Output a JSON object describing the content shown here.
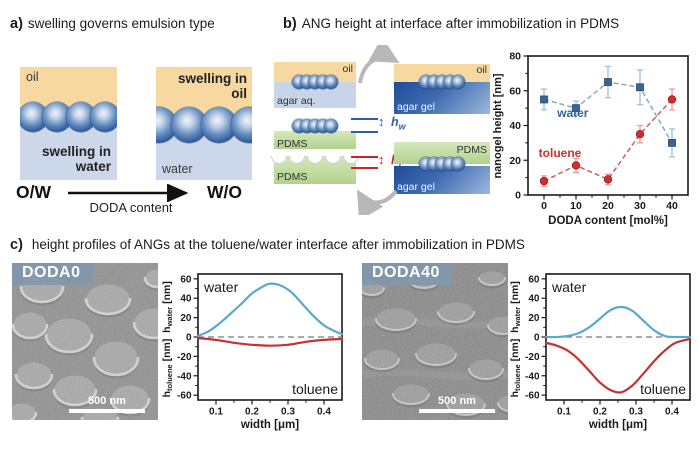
{
  "colors": {
    "oil": "#f6d8a0",
    "water_phase": "#ccd7e9",
    "agar_aq": "#c8d4e8",
    "pdms_green": "#b9d697",
    "agar_gel": "#2a56a0",
    "water_series": "#3a6496",
    "toluene_series": "#cf2e2e",
    "sem_label_bg": "#8296ad"
  },
  "panel_a": {
    "label": "a)",
    "title": "swelling governs emulsion type",
    "left_box": {
      "oil": "oil",
      "caption": "swelling in water"
    },
    "right_box": {
      "caption": "swelling in oil",
      "water": "water"
    },
    "axis": {
      "left": "O/W",
      "right": "W/O",
      "caption": "DODA content"
    }
  },
  "panel_b": {
    "label": "b)",
    "title": "ANG height at interface after immobilization in PDMS",
    "schematic": {
      "top_left": {
        "oil": "oil",
        "phase": "agar aq."
      },
      "top_right": {
        "oil": "oil",
        "phase": "agar gel"
      },
      "bottom_left": {
        "pdms_upper": "PDMS",
        "pdms_lower": "PDMS"
      },
      "bottom_right": {
        "pdms": "PDMS",
        "phase": "agar gel"
      },
      "hw": {
        "base": "h",
        "sub": "w"
      },
      "ht": {
        "base": "h",
        "sub": "t"
      }
    }
  },
  "panel_c": {
    "label": "c)",
    "title": "height profiles of ANGs at the toluene/water interface after immobilization in PDMS",
    "sem_left": {
      "label": "DODA0",
      "scale_bar": "500 nm"
    },
    "sem_right": {
      "label": "DODA40",
      "scale_bar": "500 nm"
    }
  },
  "chart_data": [
    {
      "id": "nanogel-height-vs-doda",
      "type": "scatter",
      "xlabel": "DODA content [mol%]",
      "ylabel": "nanogel height [nm]",
      "xlim": [
        -5,
        45
      ],
      "ylim": [
        0,
        80
      ],
      "xticks": [
        0,
        10,
        20,
        30,
        40
      ],
      "yticks": [
        0,
        20,
        40,
        60,
        80
      ],
      "categories": [
        0,
        10,
        20,
        30,
        40
      ],
      "series": [
        {
          "name": "water",
          "marker": "square",
          "color": "#3a6496",
          "line_color": "#8aa8bf",
          "err_color": "#9fc0dc",
          "values": [
            55,
            50,
            65,
            62,
            30
          ],
          "errors": [
            6,
            4,
            9,
            10,
            8
          ],
          "label_pos": [
            9,
            45
          ]
        },
        {
          "name": "toluene",
          "marker": "circle",
          "color": "#cf2e2e",
          "line_color": "#d25c5c",
          "err_color": "#e89c9c",
          "values": [
            8,
            17,
            9,
            35,
            55
          ],
          "errors": [
            3,
            4,
            3,
            5,
            6
          ],
          "label_pos": [
            5,
            22
          ]
        }
      ]
    },
    {
      "id": "profile-doda0",
      "type": "line",
      "xlabel": "width [μm]",
      "ylabel_top": {
        "base": "h",
        "sub": "water",
        "unit": " [nm]"
      },
      "ylabel_bottom": {
        "base": "h",
        "sub": "toluene",
        "unit": " [nm]"
      },
      "xlim": [
        0.05,
        0.45
      ],
      "ylim": [
        -65,
        65
      ],
      "xticks": [
        0.1,
        0.2,
        0.3,
        0.4
      ],
      "yticks": [
        60,
        40,
        20,
        0,
        -20,
        -40,
        -60
      ],
      "annotations": [
        {
          "text": "water",
          "pos": "top-left"
        },
        {
          "text": "toluene",
          "pos": "bottom-right"
        }
      ],
      "series": [
        {
          "name": "water",
          "color": "#58a8cf",
          "x": [
            0.05,
            0.08,
            0.11,
            0.14,
            0.17,
            0.2,
            0.23,
            0.25,
            0.28,
            0.31,
            0.34,
            0.37,
            0.4,
            0.43,
            0.45
          ],
          "y": [
            1,
            6,
            14,
            24,
            34,
            45,
            52,
            55,
            53,
            46,
            34,
            22,
            12,
            6,
            3
          ]
        },
        {
          "name": "toluene",
          "color": "#c23333",
          "x": [
            0.05,
            0.1,
            0.15,
            0.2,
            0.25,
            0.3,
            0.35,
            0.4,
            0.45
          ],
          "y": [
            -1,
            -3,
            -6,
            -8,
            -9,
            -8,
            -5,
            -3,
            -2
          ]
        }
      ]
    },
    {
      "id": "profile-doda40",
      "type": "line",
      "xlabel": "width [μm]",
      "ylabel_top": {
        "base": "h",
        "sub": "water",
        "unit": " [nm]"
      },
      "ylabel_bottom": {
        "base": "h",
        "sub": "toluene",
        "unit": " [nm]"
      },
      "xlim": [
        0.05,
        0.45
      ],
      "ylim": [
        -65,
        65
      ],
      "xticks": [
        0.1,
        0.2,
        0.3,
        0.4
      ],
      "yticks": [
        60,
        40,
        20,
        0,
        -20,
        -40,
        -60
      ],
      "annotations": [
        {
          "text": "water",
          "pos": "top-left"
        },
        {
          "text": "toluene",
          "pos": "bottom-right"
        }
      ],
      "series": [
        {
          "name": "water",
          "color": "#58a8cf",
          "x": [
            0.05,
            0.08,
            0.11,
            0.14,
            0.17,
            0.2,
            0.23,
            0.26,
            0.29,
            0.32,
            0.35,
            0.38,
            0.41,
            0.45
          ],
          "y": [
            0,
            0,
            1,
            4,
            10,
            19,
            28,
            31,
            27,
            17,
            7,
            1,
            0,
            0
          ]
        },
        {
          "name": "toluene",
          "color": "#c23333",
          "x": [
            0.05,
            0.08,
            0.11,
            0.14,
            0.17,
            0.2,
            0.23,
            0.26,
            0.29,
            0.32,
            0.35,
            0.38,
            0.41,
            0.45
          ],
          "y": [
            -6,
            -9,
            -14,
            -23,
            -35,
            -47,
            -55,
            -57,
            -50,
            -38,
            -25,
            -14,
            -6,
            -2
          ]
        }
      ]
    }
  ]
}
